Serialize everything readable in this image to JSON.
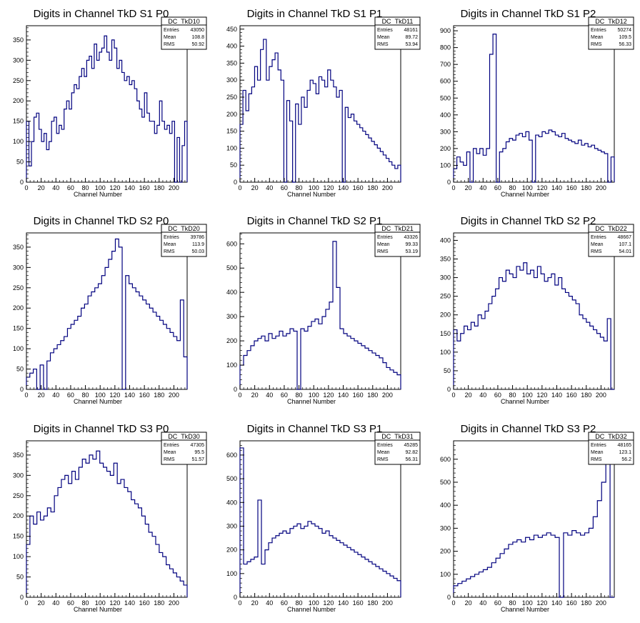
{
  "chart_data": [
    {
      "id": "DC_TkD10",
      "type": "bar",
      "title": "Digits in Channel TkD S1 P0",
      "xlabel": "Channel Number",
      "stats": {
        "entries_label": "Entries",
        "entries": "43050",
        "mean_label": "Mean",
        "mean": "108.8",
        "rms_label": "RMS",
        "rms": "50.92"
      },
      "xlim": [
        0,
        218
      ],
      "ylim": [
        0,
        385
      ],
      "xticks": [
        0,
        20,
        40,
        60,
        80,
        100,
        120,
        140,
        160,
        180,
        200
      ],
      "yticks": [
        0,
        50,
        100,
        150,
        200,
        250,
        300,
        350
      ],
      "values": [
        150,
        40,
        100,
        160,
        170,
        130,
        100,
        120,
        80,
        100,
        150,
        160,
        120,
        140,
        130,
        180,
        200,
        180,
        220,
        240,
        230,
        260,
        280,
        260,
        300,
        310,
        280,
        340,
        300,
        320,
        330,
        360,
        320,
        300,
        350,
        330,
        280,
        300,
        270,
        250,
        260,
        240,
        250,
        230,
        200,
        180,
        160,
        220,
        170,
        150,
        150,
        120,
        140,
        200,
        150,
        130,
        140,
        120,
        150,
        0,
        110,
        0,
        90,
        150
      ]
    },
    {
      "id": "DC_TkD11",
      "type": "bar",
      "title": "Digits in Channel TkD S1 P1",
      "xlabel": "Channel Number",
      "stats": {
        "entries_label": "Entries",
        "entries": "48161",
        "mean_label": "Mean",
        "mean": "89.72",
        "rms_label": "RMS",
        "rms": "53.94"
      },
      "xlim": [
        0,
        218
      ],
      "ylim": [
        0,
        460
      ],
      "xticks": [
        0,
        20,
        40,
        60,
        80,
        100,
        120,
        140,
        160,
        180,
        200
      ],
      "yticks": [
        0,
        50,
        100,
        150,
        200,
        250,
        300,
        350,
        400,
        450
      ],
      "values": [
        170,
        270,
        210,
        260,
        280,
        340,
        300,
        390,
        420,
        300,
        340,
        360,
        380,
        330,
        300,
        0,
        240,
        180,
        0,
        230,
        170,
        250,
        220,
        270,
        300,
        290,
        260,
        310,
        300,
        280,
        330,
        300,
        280,
        250,
        270,
        0,
        220,
        190,
        200,
        180,
        170,
        160,
        150,
        140,
        130,
        120,
        110,
        100,
        90,
        80,
        70,
        60,
        50,
        40,
        50
      ]
    },
    {
      "id": "DC_TkD12",
      "type": "bar",
      "title": "Digits in Channel TkD S1 P2",
      "xlabel": "Channel Number",
      "stats": {
        "entries_label": "Entries",
        "entries": "50274",
        "mean_label": "Mean",
        "mean": "109.5",
        "rms_label": "RMS",
        "rms": "56.33"
      },
      "xlim": [
        0,
        218
      ],
      "ylim": [
        0,
        930
      ],
      "xticks": [
        0,
        20,
        40,
        60,
        80,
        100,
        120,
        140,
        160,
        180,
        200
      ],
      "yticks": [
        0,
        100,
        200,
        300,
        400,
        500,
        600,
        700,
        800,
        900
      ],
      "values": [
        80,
        150,
        120,
        100,
        180,
        0,
        200,
        170,
        200,
        160,
        200,
        760,
        880,
        0,
        180,
        200,
        240,
        260,
        250,
        280,
        290,
        270,
        300,
        250,
        0,
        280,
        270,
        300,
        290,
        310,
        300,
        280,
        270,
        290,
        260,
        250,
        240,
        230,
        250,
        220,
        230,
        210,
        220,
        200,
        190,
        180,
        170,
        0,
        150
      ]
    },
    {
      "id": "DC_TkD20",
      "type": "bar",
      "title": "Digits in Channel TkD S2 P0",
      "xlabel": "Channel Number",
      "stats": {
        "entries_label": "Entries",
        "entries": "39786",
        "mean_label": "Mean",
        "mean": "113.9",
        "rms_label": "RMS",
        "rms": "50.03"
      },
      "xlim": [
        0,
        218
      ],
      "ylim": [
        0,
        385
      ],
      "xticks": [
        0,
        20,
        40,
        60,
        80,
        100,
        120,
        140,
        160,
        180,
        200
      ],
      "yticks": [
        0,
        50,
        100,
        150,
        200,
        250,
        300,
        350
      ],
      "values": [
        30,
        40,
        50,
        0,
        60,
        0,
        70,
        90,
        100,
        110,
        120,
        130,
        150,
        160,
        170,
        180,
        200,
        210,
        230,
        240,
        250,
        260,
        280,
        300,
        320,
        340,
        370,
        350,
        0,
        280,
        260,
        250,
        240,
        230,
        220,
        210,
        200,
        190,
        180,
        170,
        160,
        150,
        140,
        130,
        120,
        220,
        80
      ]
    },
    {
      "id": "DC_TkD21",
      "type": "bar",
      "title": "Digits in Channel TkD S2 P1",
      "xlabel": "Channel Number",
      "stats": {
        "entries_label": "Entries",
        "entries": "43326",
        "mean_label": "Mean",
        "mean": "99.33",
        "rms_label": "RMS",
        "rms": "53.19"
      },
      "xlim": [
        0,
        218
      ],
      "ylim": [
        0,
        645
      ],
      "xticks": [
        0,
        20,
        40,
        60,
        80,
        100,
        120,
        140,
        160,
        180,
        200
      ],
      "yticks": [
        0,
        100,
        200,
        300,
        400,
        500,
        600
      ],
      "values": [
        100,
        140,
        160,
        180,
        200,
        210,
        220,
        200,
        230,
        210,
        220,
        240,
        220,
        230,
        250,
        240,
        0,
        250,
        240,
        260,
        280,
        290,
        270,
        300,
        330,
        360,
        610,
        420,
        250,
        230,
        220,
        210,
        200,
        190,
        180,
        170,
        160,
        150,
        140,
        130,
        110,
        90,
        80,
        70,
        60
      ]
    },
    {
      "id": "DC_TkD22",
      "type": "bar",
      "title": "Digits in Channel TkD S2 P2",
      "xlabel": "Channel Number",
      "stats": {
        "entries_label": "Entries",
        "entries": "48667",
        "mean_label": "Mean",
        "mean": "107.1",
        "rms_label": "RMS",
        "rms": "54.01"
      },
      "xlim": [
        0,
        218
      ],
      "ylim": [
        0,
        420
      ],
      "xticks": [
        0,
        20,
        40,
        60,
        80,
        100,
        120,
        140,
        160,
        180,
        200
      ],
      "yticks": [
        0,
        50,
        100,
        150,
        200,
        250,
        300,
        350,
        400
      ],
      "values": [
        160,
        130,
        150,
        170,
        160,
        180,
        170,
        200,
        190,
        210,
        230,
        250,
        270,
        300,
        290,
        320,
        310,
        300,
        330,
        320,
        340,
        310,
        320,
        300,
        330,
        310,
        290,
        300,
        310,
        280,
        300,
        270,
        260,
        250,
        240,
        230,
        200,
        190,
        180,
        170,
        160,
        150,
        140,
        130,
        190,
        0
      ]
    },
    {
      "id": "DC_TkD30",
      "type": "bar",
      "title": "Digits in Channel TkD S3 P0",
      "xlabel": "Channel Number",
      "stats": {
        "entries_label": "Entries",
        "entries": "47305",
        "mean_label": "Mean",
        "mean": "95.5",
        "rms_label": "RMS",
        "rms": "51.57"
      },
      "xlim": [
        0,
        218
      ],
      "ylim": [
        0,
        385
      ],
      "xticks": [
        0,
        20,
        40,
        60,
        80,
        100,
        120,
        140,
        160,
        180,
        200
      ],
      "yticks": [
        0,
        50,
        100,
        150,
        200,
        250,
        300,
        350
      ],
      "values": [
        130,
        200,
        180,
        210,
        190,
        200,
        220,
        210,
        250,
        270,
        290,
        300,
        280,
        310,
        290,
        320,
        340,
        330,
        350,
        340,
        360,
        330,
        320,
        310,
        300,
        330,
        280,
        290,
        270,
        260,
        240,
        230,
        220,
        200,
        180,
        160,
        150,
        130,
        110,
        100,
        80,
        70,
        60,
        50,
        40,
        30
      ]
    },
    {
      "id": "DC_TkD31",
      "type": "bar",
      "title": "Digits in Channel TkD S3 P1",
      "xlabel": "Channel Number",
      "stats": {
        "entries_label": "Entries",
        "entries": "45285",
        "mean_label": "Mean",
        "mean": "92.82",
        "rms_label": "RMS",
        "rms": "56.31"
      },
      "xlim": [
        0,
        218
      ],
      "ylim": [
        0,
        660
      ],
      "xticks": [
        0,
        20,
        40,
        60,
        80,
        100,
        120,
        140,
        160,
        180,
        200
      ],
      "yticks": [
        0,
        100,
        200,
        300,
        400,
        500,
        600
      ],
      "values": [
        630,
        140,
        150,
        160,
        170,
        410,
        140,
        200,
        230,
        250,
        260,
        270,
        280,
        270,
        290,
        300,
        310,
        290,
        300,
        320,
        310,
        300,
        290,
        270,
        280,
        260,
        250,
        240,
        230,
        220,
        210,
        200,
        190,
        180,
        170,
        160,
        150,
        140,
        130,
        120,
        110,
        100,
        90,
        80,
        70
      ]
    },
    {
      "id": "DC_TkD32",
      "type": "bar",
      "title": "Digits in Channel TkD S3 P2",
      "xlabel": "Channel Number",
      "stats": {
        "entries_label": "Entries",
        "entries": "48165",
        "mean_label": "Mean",
        "mean": "123.1",
        "rms_label": "RMS",
        "rms": "56.2"
      },
      "xlim": [
        0,
        218
      ],
      "ylim": [
        0,
        680
      ],
      "xticks": [
        0,
        20,
        40,
        60,
        80,
        100,
        120,
        140,
        160,
        180,
        200
      ],
      "yticks": [
        0,
        100,
        200,
        300,
        400,
        500,
        600
      ],
      "values": [
        50,
        60,
        70,
        80,
        90,
        100,
        110,
        120,
        130,
        150,
        170,
        190,
        210,
        230,
        240,
        250,
        240,
        260,
        250,
        270,
        260,
        270,
        280,
        270,
        260,
        0,
        280,
        270,
        290,
        280,
        270,
        280,
        300,
        350,
        420,
        500,
        620,
        0
      ]
    }
  ],
  "colors": {
    "line": "#00007f",
    "axis": "#000000",
    "background": "#ffffff"
  }
}
